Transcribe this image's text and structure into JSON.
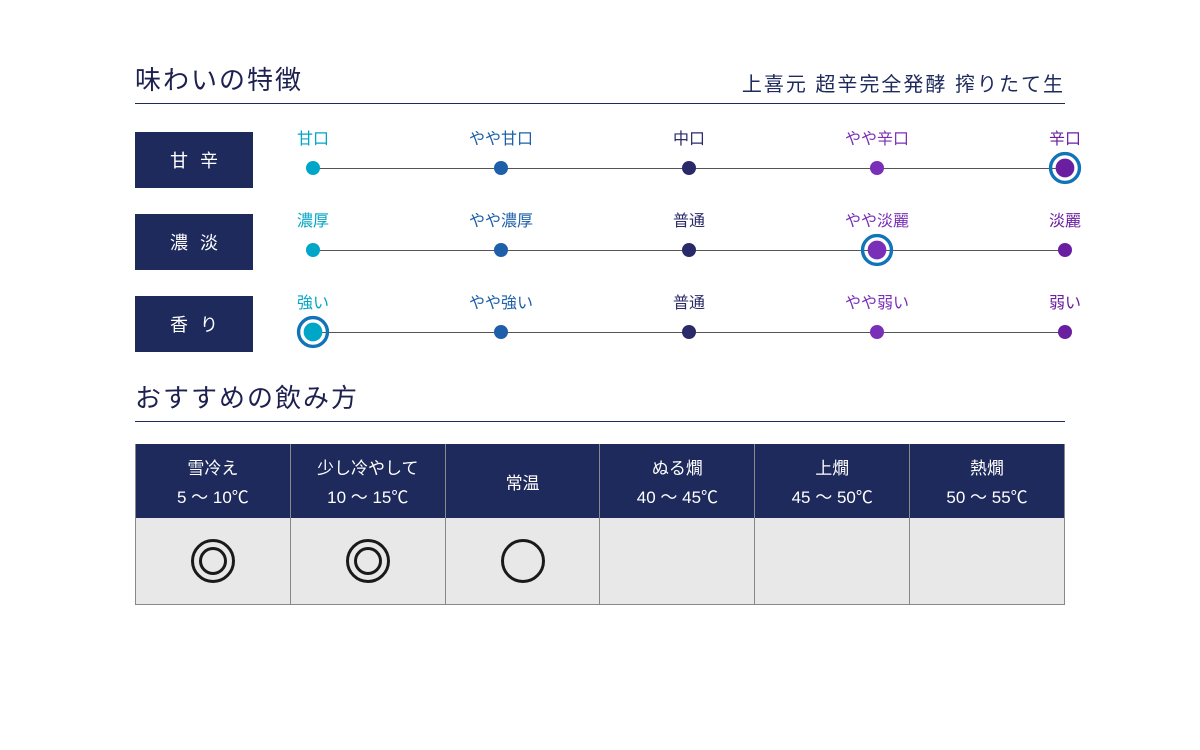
{
  "colors": {
    "navy": "#1e2a5c",
    "line": "#555555",
    "cell_bg": "#e8e8e8",
    "cell_border": "#888888",
    "mark": "#1a1a1a"
  },
  "section1": {
    "title": "味わいの特徴",
    "subtitle": "上喜元 超辛完全発酵 搾りたて生"
  },
  "scales": [
    {
      "label": "甘辛",
      "points": [
        {
          "text": "甘口",
          "color": "#00a6c7"
        },
        {
          "text": "やや甘口",
          "color": "#1e5faa"
        },
        {
          "text": "中口",
          "color": "#2a2a6a"
        },
        {
          "text": "やや辛口",
          "color": "#7a2fb8"
        },
        {
          "text": "辛口",
          "color": "#6a1fa0"
        }
      ],
      "selected_index": 4,
      "ring_outer": "#1173b8",
      "ring_inner": "#6a1fa0"
    },
    {
      "label": "濃淡",
      "points": [
        {
          "text": "濃厚",
          "color": "#00a6c7"
        },
        {
          "text": "やや濃厚",
          "color": "#1e5faa"
        },
        {
          "text": "普通",
          "color": "#2a2a6a"
        },
        {
          "text": "やや淡麗",
          "color": "#7a2fb8"
        },
        {
          "text": "淡麗",
          "color": "#6a1fa0"
        }
      ],
      "selected_index": 3,
      "ring_outer": "#1173b8",
      "ring_inner": "#7a2fb8"
    },
    {
      "label": "香り",
      "points": [
        {
          "text": "強い",
          "color": "#00a6c7"
        },
        {
          "text": "やや強い",
          "color": "#1e5faa"
        },
        {
          "text": "普通",
          "color": "#2a2a6a"
        },
        {
          "text": "やや弱い",
          "color": "#7a2fb8"
        },
        {
          "text": "弱い",
          "color": "#6a1fa0"
        }
      ],
      "selected_index": 0,
      "ring_outer": "#1173b8",
      "ring_inner": "#00a6c7"
    }
  ],
  "section2": {
    "title": "おすすめの飲み方",
    "columns": [
      {
        "label": "雪冷え",
        "range": "5 ～ 10℃",
        "mark": "double"
      },
      {
        "label": "少し冷やして",
        "range": "10 ～ 15℃",
        "mark": "double"
      },
      {
        "label": "常温",
        "range": "",
        "mark": "single"
      },
      {
        "label": "ぬる燗",
        "range": "40 ～ 45℃",
        "mark": "none"
      },
      {
        "label": "上燗",
        "range": "45 ～ 50℃",
        "mark": "none"
      },
      {
        "label": "熱燗",
        "range": "50 ～ 55℃",
        "mark": "none"
      }
    ]
  }
}
